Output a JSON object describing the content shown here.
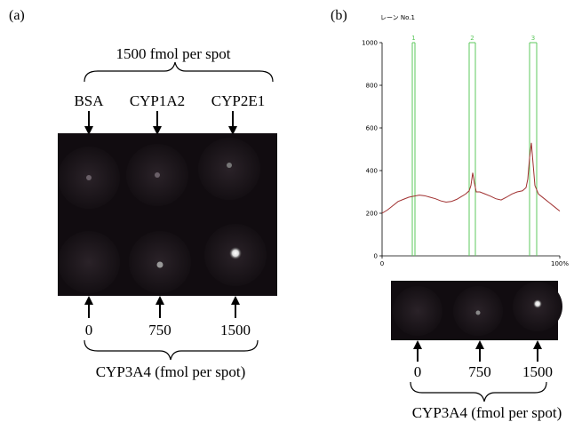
{
  "panel_a": {
    "label": "(a)",
    "top_bracket": "1500 fmol per spot",
    "top_labels": [
      "BSA",
      "CYP1A2",
      "CYP2E1"
    ],
    "bottom_labels": [
      "0",
      "750",
      "1500"
    ],
    "bottom_bracket": "CYP3A4 (fmol per spot)"
  },
  "panel_b": {
    "label": "(b)",
    "bottom_labels": [
      "0",
      "750",
      "1500"
    ],
    "bottom_bracket": "CYP3A4 (fmol per spot)"
  },
  "chart_data": {
    "type": "line",
    "title": "レーン No.1",
    "x": [
      0,
      3,
      6,
      9,
      12,
      15,
      18,
      21,
      24,
      27,
      30,
      33,
      36,
      39,
      42,
      45,
      47,
      49,
      50,
      51,
      52,
      53,
      55,
      58,
      61,
      64,
      67,
      70,
      73,
      76,
      79,
      81,
      82,
      83,
      84,
      85,
      86,
      88,
      91,
      94,
      97,
      100
    ],
    "series": [
      {
        "color": "#a03030",
        "values": [
          200,
          215,
          235,
          255,
          265,
          275,
          280,
          285,
          282,
          275,
          268,
          258,
          252,
          255,
          265,
          280,
          290,
          305,
          330,
          390,
          340,
          300,
          300,
          290,
          280,
          268,
          262,
          275,
          290,
          300,
          305,
          320,
          360,
          460,
          530,
          430,
          330,
          290,
          270,
          250,
          230,
          210
        ]
      }
    ],
    "lanes": [
      {
        "label": "1",
        "start": 17,
        "end": 18.5
      },
      {
        "label": "2",
        "start": 49,
        "end": 52.5
      },
      {
        "label": "3",
        "start": 83,
        "end": 87
      }
    ],
    "lane_color": "#5cc85c",
    "xlim": [
      0,
      100
    ],
    "xticks": [
      0,
      {
        "value": 100,
        "label": "100%"
      }
    ],
    "ylim": [
      0,
      1000
    ],
    "yticks": [
      0,
      200,
      400,
      600,
      800,
      1000
    ]
  }
}
